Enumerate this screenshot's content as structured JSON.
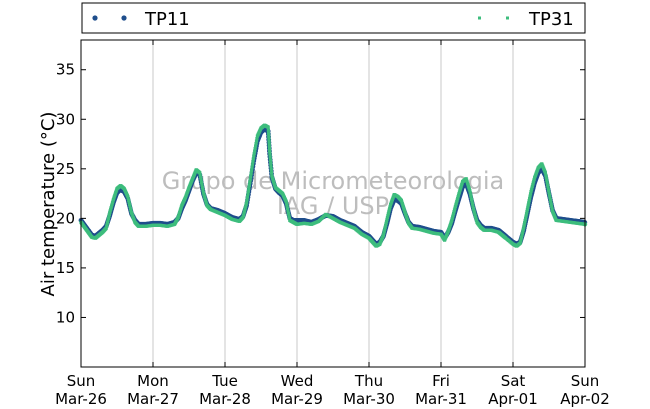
{
  "chart_data": {
    "type": "scatter",
    "title": "",
    "xlabel": "",
    "ylabel": "Air temperature (°C)",
    "ylim": [
      5,
      38
    ],
    "xlim": [
      0,
      7
    ],
    "yticks": [
      10,
      15,
      20,
      25,
      30,
      35
    ],
    "xticks": [
      {
        "day": 0,
        "weekday": "Sun",
        "date": "Mar-26"
      },
      {
        "day": 1,
        "weekday": "Mon",
        "date": "Mar-27"
      },
      {
        "day": 2,
        "weekday": "Tue",
        "date": "Mar-28"
      },
      {
        "day": 3,
        "weekday": "Wed",
        "date": "Mar-29"
      },
      {
        "day": 4,
        "weekday": "Thu",
        "date": "Mar-30"
      },
      {
        "day": 5,
        "weekday": "Fri",
        "date": "Mar-31"
      },
      {
        "day": 6,
        "weekday": "Sat",
        "date": "Apr-01"
      },
      {
        "day": 7,
        "weekday": "Sun",
        "date": "Apr-02"
      }
    ],
    "grid": "vertical",
    "legend_position": "top",
    "x_unit": "days since Sun Mar-26 00:00",
    "series": [
      {
        "name": "TP11",
        "color": "#1f4e8c",
        "marker": "circle",
        "points": [
          [
            0.0,
            19.8
          ],
          [
            0.05,
            19.3
          ],
          [
            0.1,
            18.8
          ],
          [
            0.15,
            18.3
          ],
          [
            0.2,
            18.2
          ],
          [
            0.25,
            18.5
          ],
          [
            0.3,
            18.8
          ],
          [
            0.35,
            19.2
          ],
          [
            0.4,
            20.3
          ],
          [
            0.45,
            21.6
          ],
          [
            0.5,
            22.6
          ],
          [
            0.55,
            22.9
          ],
          [
            0.6,
            22.7
          ],
          [
            0.65,
            22.0
          ],
          [
            0.7,
            20.5
          ],
          [
            0.75,
            19.8
          ],
          [
            0.8,
            19.4
          ],
          [
            0.9,
            19.4
          ],
          [
            1.0,
            19.5
          ],
          [
            1.1,
            19.5
          ],
          [
            1.2,
            19.4
          ],
          [
            1.3,
            19.6
          ],
          [
            1.35,
            20.0
          ],
          [
            1.4,
            21.0
          ],
          [
            1.45,
            21.8
          ],
          [
            1.5,
            22.8
          ],
          [
            1.55,
            23.8
          ],
          [
            1.6,
            24.6
          ],
          [
            1.65,
            24.4
          ],
          [
            1.7,
            22.5
          ],
          [
            1.75,
            21.4
          ],
          [
            1.8,
            21.0
          ],
          [
            1.9,
            20.8
          ],
          [
            2.0,
            20.5
          ],
          [
            2.1,
            20.1
          ],
          [
            2.2,
            19.9
          ],
          [
            2.25,
            20.2
          ],
          [
            2.3,
            21.3
          ],
          [
            2.35,
            23.5
          ],
          [
            2.4,
            25.8
          ],
          [
            2.45,
            27.8
          ],
          [
            2.5,
            28.7
          ],
          [
            2.55,
            29.0
          ],
          [
            2.6,
            28.8
          ],
          [
            2.62,
            26.5
          ],
          [
            2.65,
            24.2
          ],
          [
            2.7,
            23.0
          ],
          [
            2.75,
            22.6
          ],
          [
            2.8,
            22.3
          ],
          [
            2.85,
            21.5
          ],
          [
            2.9,
            20.0
          ],
          [
            2.95,
            19.8
          ],
          [
            3.0,
            19.8
          ],
          [
            3.1,
            19.8
          ],
          [
            3.2,
            19.6
          ],
          [
            3.3,
            19.9
          ],
          [
            3.4,
            20.3
          ],
          [
            3.5,
            20.2
          ],
          [
            3.6,
            19.8
          ],
          [
            3.7,
            19.5
          ],
          [
            3.8,
            19.2
          ],
          [
            3.9,
            18.6
          ],
          [
            4.0,
            18.2
          ],
          [
            4.05,
            17.8
          ],
          [
            4.1,
            17.4
          ],
          [
            4.15,
            17.6
          ],
          [
            4.2,
            18.2
          ],
          [
            4.25,
            19.5
          ],
          [
            4.3,
            21.0
          ],
          [
            4.35,
            21.9
          ],
          [
            4.4,
            21.8
          ],
          [
            4.45,
            21.5
          ],
          [
            4.5,
            20.5
          ],
          [
            4.55,
            19.6
          ],
          [
            4.6,
            19.2
          ],
          [
            4.7,
            19.1
          ],
          [
            4.8,
            18.9
          ],
          [
            4.9,
            18.7
          ],
          [
            5.0,
            18.6
          ],
          [
            5.05,
            18.0
          ],
          [
            5.1,
            18.6
          ],
          [
            5.15,
            19.5
          ],
          [
            5.2,
            20.8
          ],
          [
            5.25,
            22.0
          ],
          [
            5.3,
            23.2
          ],
          [
            5.35,
            23.5
          ],
          [
            5.4,
            22.5
          ],
          [
            5.45,
            21.0
          ],
          [
            5.5,
            19.8
          ],
          [
            5.55,
            19.3
          ],
          [
            5.6,
            19.0
          ],
          [
            5.7,
            19.0
          ],
          [
            5.8,
            18.8
          ],
          [
            5.85,
            18.5
          ],
          [
            5.9,
            18.2
          ],
          [
            6.0,
            17.6
          ],
          [
            6.05,
            17.4
          ],
          [
            6.1,
            17.6
          ],
          [
            6.15,
            18.8
          ],
          [
            6.2,
            20.5
          ],
          [
            6.25,
            22.2
          ],
          [
            6.3,
            23.6
          ],
          [
            6.35,
            24.6
          ],
          [
            6.4,
            25.0
          ],
          [
            6.45,
            24.3
          ],
          [
            6.5,
            22.5
          ],
          [
            6.55,
            20.8
          ],
          [
            6.6,
            20.0
          ],
          [
            6.7,
            19.9
          ],
          [
            6.8,
            19.8
          ],
          [
            6.9,
            19.7
          ],
          [
            7.0,
            19.6
          ]
        ]
      },
      {
        "name": "TP31",
        "color": "#3dbd7d",
        "marker": "square",
        "points": [
          [
            0.0,
            19.6
          ],
          [
            0.05,
            19.1
          ],
          [
            0.1,
            18.6
          ],
          [
            0.15,
            18.1
          ],
          [
            0.2,
            18.0
          ],
          [
            0.25,
            18.3
          ],
          [
            0.3,
            18.6
          ],
          [
            0.35,
            19.0
          ],
          [
            0.4,
            20.6
          ],
          [
            0.45,
            21.9
          ],
          [
            0.5,
            23.0
          ],
          [
            0.55,
            23.3
          ],
          [
            0.6,
            23.0
          ],
          [
            0.65,
            22.2
          ],
          [
            0.7,
            20.6
          ],
          [
            0.75,
            19.6
          ],
          [
            0.8,
            19.2
          ],
          [
            0.9,
            19.2
          ],
          [
            1.0,
            19.3
          ],
          [
            1.1,
            19.3
          ],
          [
            1.2,
            19.2
          ],
          [
            1.3,
            19.4
          ],
          [
            1.35,
            20.1
          ],
          [
            1.4,
            21.3
          ],
          [
            1.45,
            22.1
          ],
          [
            1.5,
            23.1
          ],
          [
            1.55,
            24.0
          ],
          [
            1.6,
            24.9
          ],
          [
            1.65,
            24.6
          ],
          [
            1.7,
            22.6
          ],
          [
            1.75,
            21.3
          ],
          [
            1.8,
            20.9
          ],
          [
            1.9,
            20.6
          ],
          [
            2.0,
            20.3
          ],
          [
            2.1,
            19.9
          ],
          [
            2.2,
            19.7
          ],
          [
            2.25,
            20.1
          ],
          [
            2.3,
            21.6
          ],
          [
            2.35,
            23.9
          ],
          [
            2.4,
            26.3
          ],
          [
            2.45,
            28.3
          ],
          [
            2.5,
            29.1
          ],
          [
            2.55,
            29.4
          ],
          [
            2.6,
            29.2
          ],
          [
            2.62,
            26.8
          ],
          [
            2.65,
            24.3
          ],
          [
            2.7,
            23.1
          ],
          [
            2.75,
            22.8
          ],
          [
            2.8,
            22.5
          ],
          [
            2.85,
            21.7
          ],
          [
            2.9,
            19.8
          ],
          [
            2.95,
            19.6
          ],
          [
            3.0,
            19.4
          ],
          [
            3.1,
            19.5
          ],
          [
            3.2,
            19.4
          ],
          [
            3.3,
            19.7
          ],
          [
            3.4,
            20.4
          ],
          [
            3.5,
            20.0
          ],
          [
            3.6,
            19.6
          ],
          [
            3.7,
            19.3
          ],
          [
            3.8,
            19.0
          ],
          [
            3.9,
            18.4
          ],
          [
            4.0,
            18.0
          ],
          [
            4.05,
            17.6
          ],
          [
            4.1,
            17.2
          ],
          [
            4.15,
            17.4
          ],
          [
            4.2,
            18.3
          ],
          [
            4.25,
            19.9
          ],
          [
            4.3,
            21.4
          ],
          [
            4.35,
            22.4
          ],
          [
            4.4,
            22.2
          ],
          [
            4.45,
            21.8
          ],
          [
            4.5,
            20.6
          ],
          [
            4.55,
            19.5
          ],
          [
            4.6,
            19.0
          ],
          [
            4.7,
            18.9
          ],
          [
            4.8,
            18.7
          ],
          [
            4.9,
            18.5
          ],
          [
            5.0,
            18.4
          ],
          [
            5.05,
            17.8
          ],
          [
            5.1,
            18.7
          ],
          [
            5.15,
            19.8
          ],
          [
            5.2,
            21.2
          ],
          [
            5.25,
            22.5
          ],
          [
            5.3,
            23.7
          ],
          [
            5.35,
            24.0
          ],
          [
            5.4,
            22.8
          ],
          [
            5.45,
            21.0
          ],
          [
            5.5,
            19.6
          ],
          [
            5.55,
            19.1
          ],
          [
            5.6,
            18.8
          ],
          [
            5.7,
            18.8
          ],
          [
            5.8,
            18.6
          ],
          [
            5.85,
            18.3
          ],
          [
            5.9,
            18.0
          ],
          [
            6.0,
            17.4
          ],
          [
            6.05,
            17.2
          ],
          [
            6.1,
            17.5
          ],
          [
            6.15,
            19.1
          ],
          [
            6.2,
            20.9
          ],
          [
            6.25,
            22.7
          ],
          [
            6.3,
            24.1
          ],
          [
            6.35,
            25.1
          ],
          [
            6.4,
            25.5
          ],
          [
            6.45,
            24.6
          ],
          [
            6.5,
            22.6
          ],
          [
            6.55,
            20.7
          ],
          [
            6.6,
            19.8
          ],
          [
            6.7,
            19.7
          ],
          [
            6.8,
            19.6
          ],
          [
            6.9,
            19.5
          ],
          [
            7.0,
            19.4
          ]
        ]
      }
    ],
    "watermark": [
      "Grupo de Micrometeorologia",
      "IAG / USP"
    ]
  }
}
